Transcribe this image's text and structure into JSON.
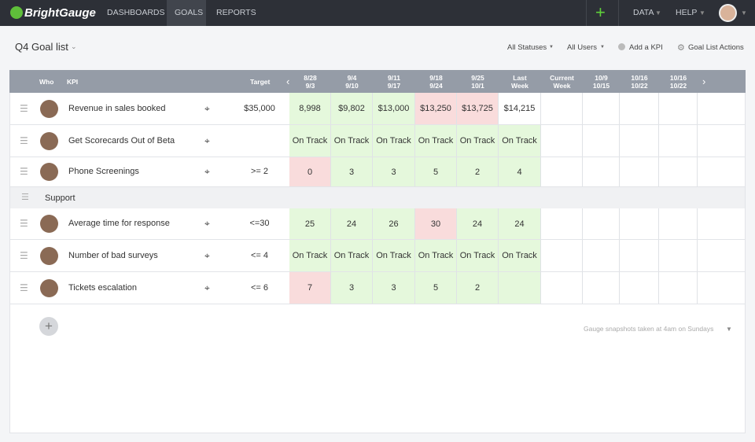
{
  "nav": {
    "brand": "BrightGauge",
    "items": [
      "DASHBOARDS",
      "GOALS",
      "REPORTS"
    ],
    "right": [
      "DATA",
      "HELP"
    ]
  },
  "toolbar": {
    "title": "Q4 Goal list",
    "actions": [
      "All Statuses",
      "All Users",
      "Add a KPI",
      "Goal List Actions"
    ]
  },
  "table": {
    "headers": {
      "who": "Who",
      "kpi": "KPI",
      "target": "Target",
      "weeks": [
        [
          "8/28",
          "9/3"
        ],
        [
          "9/4",
          "9/10"
        ],
        [
          "9/11",
          "9/17"
        ],
        [
          "9/18",
          "9/24"
        ],
        [
          "9/25",
          "10/1"
        ],
        [
          "Last",
          "Week"
        ],
        [
          "Current",
          "Week"
        ],
        [
          "10/9",
          "10/15"
        ],
        [
          "10/16",
          "10/22"
        ],
        [
          "10/16",
          "10/22"
        ]
      ]
    },
    "sections": [
      {
        "rows": [
          {
            "kpi": "Revenue in sales booked",
            "target": "$35,000",
            "values": [
              "8,998",
              "$9,802",
              "$13,000",
              "$13,250",
              "$13,725",
              "$14,215"
            ],
            "colors": [
              "#e5f8dc",
              "#e5f8dc",
              "#e5f8dc",
              "#f9dcdc",
              "#f9dcdc",
              "#ffffff"
            ]
          },
          {
            "kpi": "Get Scorecards Out of Beta",
            "target": null,
            "values": [
              "On Track",
              "On Track",
              "On Track",
              "On Track",
              "On Track",
              "On Track"
            ],
            "colors": [
              "#e5f8dc",
              "#e5f8dc",
              "#e5f8dc",
              "#e5f8dc",
              "#e5f8dc",
              "#e5f8dc"
            ]
          },
          {
            "kpi": "Phone Screenings",
            "target": ">= 2",
            "values": [
              "0",
              "3",
              "3",
              "5",
              "2",
              "4"
            ],
            "colors": [
              "#f9dcdc",
              "#e5f8dc",
              "#e5f8dc",
              "#e5f8dc",
              "#e5f8dc",
              "#e5f8dc"
            ]
          }
        ]
      },
      {
        "name": "Support",
        "rows": [
          {
            "kpi": "Average time for response",
            "target": "<=30",
            "values": [
              "25",
              "24",
              "26",
              "30",
              "24",
              "24"
            ],
            "colors": [
              "#e5f8dc",
              "#e5f8dc",
              "#e5f8dc",
              "#f9dcdc",
              "#e5f8dc",
              "#e5f8dc"
            ]
          },
          {
            "kpi": "Number of bad surveys",
            "target": "<= 4",
            "values": [
              "On Track",
              "On Track",
              "On Track",
              "On Track",
              "On Track",
              "On Track"
            ],
            "colors": [
              "#e5f8dc",
              "#e5f8dc",
              "#e5f8dc",
              "#e5f8dc",
              "#e5f8dc",
              "#e5f8dc"
            ]
          },
          {
            "kpi": "Tickets escalation",
            "target": "<= 6",
            "values": [
              "7",
              "3",
              "3",
              "5",
              "2",
              null
            ],
            "colors": [
              "#f9dcdc",
              "#e5f8dc",
              "#e5f8dc",
              "#e5f8dc",
              "#e5f8dc",
              "#e5f8dc"
            ]
          }
        ]
      }
    ]
  },
  "footer": {
    "note": "Gauge snapshots taken at 4am on Sundays"
  }
}
